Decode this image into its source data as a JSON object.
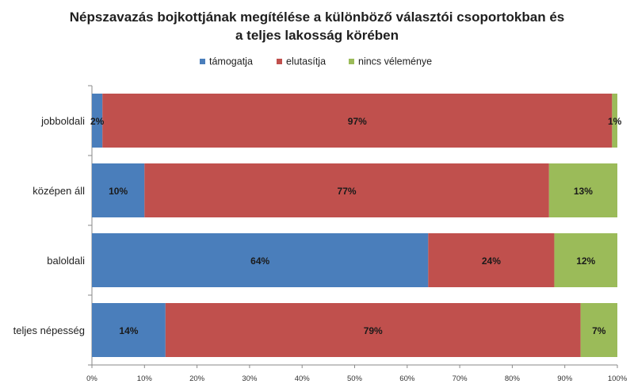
{
  "chart_data": {
    "type": "bar",
    "orientation": "horizontal",
    "stacked": "percent",
    "title_lines": [
      "Népszavazás bojkottjának megítélése a különböző választói csoportokban és",
      "a teljes lakosság körében"
    ],
    "categories": [
      "jobboldali",
      "középen áll",
      "baloldali",
      "teljes népesség"
    ],
    "series": [
      {
        "name": "támogatja",
        "color": "#4a7ebb",
        "values": [
          2,
          10,
          64,
          14
        ],
        "labels": [
          "2%",
          "10%",
          "64%",
          "14%"
        ]
      },
      {
        "name": "elutasítja",
        "color": "#c0504d",
        "values": [
          97,
          77,
          24,
          79
        ],
        "labels": [
          "97%",
          "77%",
          "24%",
          "79%"
        ]
      },
      {
        "name": "nincs véleménye",
        "color": "#9bbb59",
        "values": [
          1,
          13,
          12,
          7
        ],
        "labels": [
          "1%",
          "13%",
          "12%",
          "7%"
        ]
      }
    ],
    "x_ticks": [
      "0%",
      "10%",
      "20%",
      "30%",
      "40%",
      "50%",
      "60%",
      "70%",
      "80%",
      "90%",
      "100%"
    ],
    "xlim": [
      0,
      100
    ],
    "legend_position": "top",
    "grid": false
  }
}
